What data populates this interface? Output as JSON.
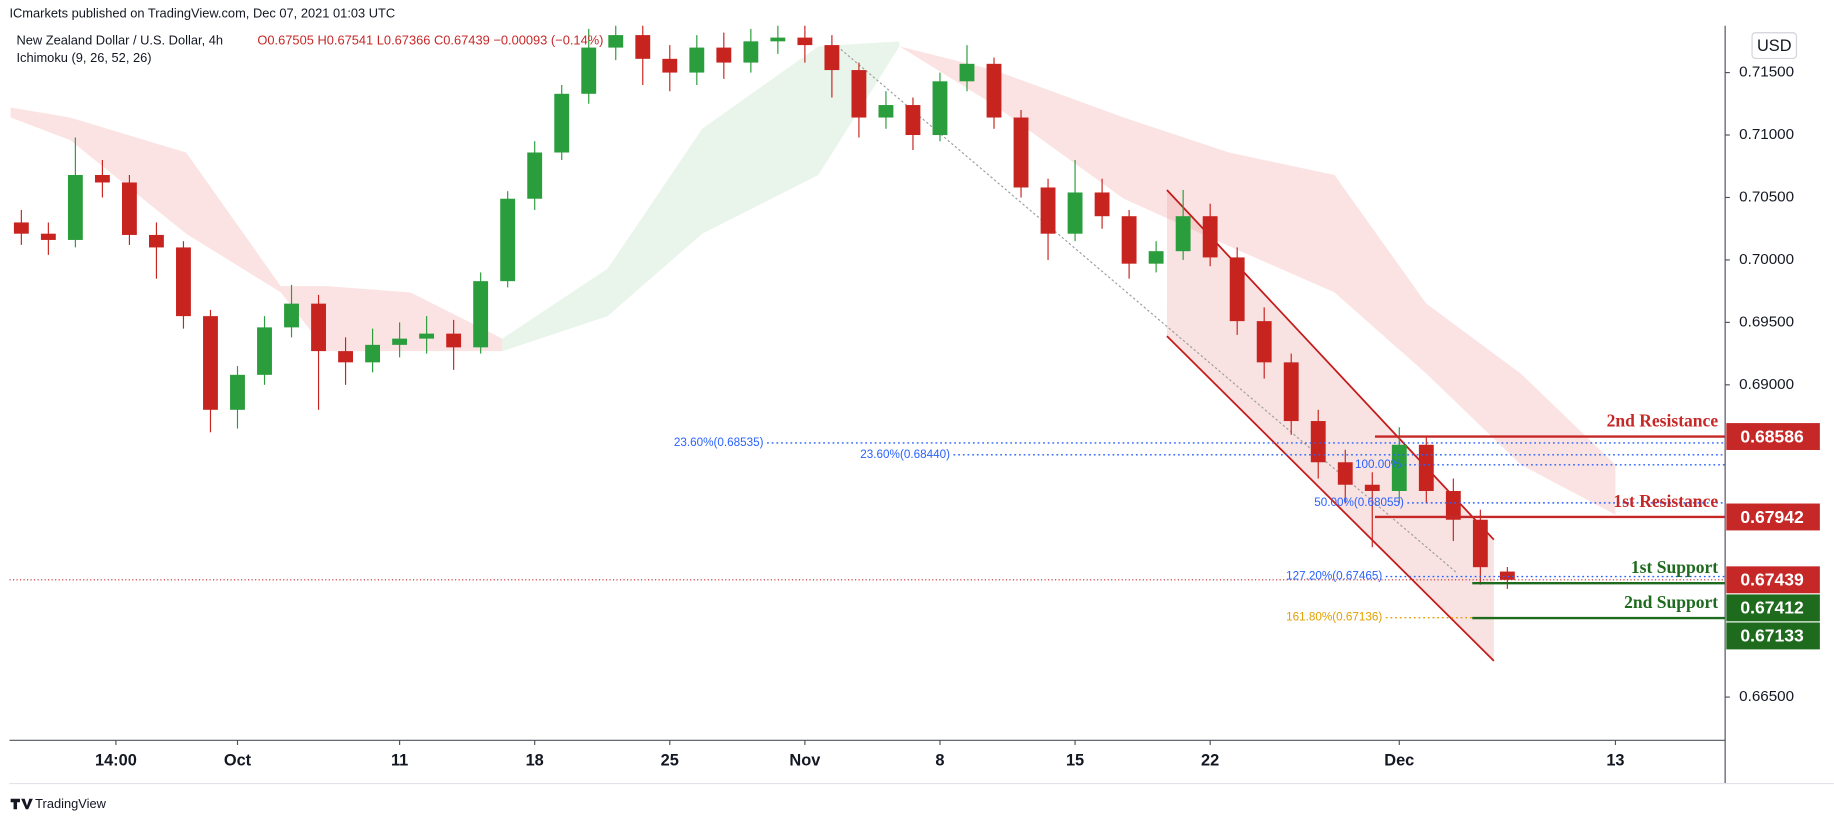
{
  "header": {
    "publisher": "ICmarkets published on TradingView.com, Dec 07, 2021 01:03 UTC",
    "symbol": "New Zealand Dollar / U.S. Dollar, 4h",
    "ohlc": "O0.67505 H0.67541 L0.67366 C0.67439 −0.00093 (−0.14%)",
    "indicator": "Ichimoku (9, 26, 52, 26)",
    "currency": "USD"
  },
  "footer": {
    "brand": "TradingView"
  },
  "chart_data": {
    "type": "candlestick",
    "xlim": [
      -8.44,
      55.06
    ],
    "ylim": [
      0.66154,
      0.71875
    ],
    "xticks": [
      {
        "value": -4.5,
        "label": "14:00"
      },
      {
        "value": 0,
        "label": "Oct"
      },
      {
        "value": 6,
        "label": "11"
      },
      {
        "value": 11,
        "label": "18"
      },
      {
        "value": 16,
        "label": "25"
      },
      {
        "value": 21,
        "label": "Nov"
      },
      {
        "value": 26,
        "label": "8"
      },
      {
        "value": 31,
        "label": "15"
      },
      {
        "value": 36,
        "label": "22"
      },
      {
        "value": 43,
        "label": "Dec"
      },
      {
        "value": 51,
        "label": "13"
      }
    ],
    "yticks": [
      {
        "value": 0.715,
        "label": "0.71500"
      },
      {
        "value": 0.71,
        "label": "0.71000"
      },
      {
        "value": 0.705,
        "label": "0.70500"
      },
      {
        "value": 0.7,
        "label": "0.70000"
      },
      {
        "value": 0.695,
        "label": "0.69500"
      },
      {
        "value": 0.69,
        "label": "0.69000"
      },
      {
        "value": 0.665,
        "label": "0.66500"
      }
    ],
    "grid": false,
    "candles": {
      "up_color": "#2a9d3c",
      "down_color": "#c7241f",
      "x": [
        -8,
        -7,
        -6,
        -5,
        -4,
        -3,
        -2,
        -1,
        0,
        1,
        2,
        3,
        4,
        5,
        6,
        7,
        8,
        9,
        10,
        11,
        12,
        13,
        14,
        15,
        16,
        17,
        18,
        19,
        20,
        21,
        22,
        23,
        24,
        25,
        26,
        27,
        28,
        29,
        30,
        31,
        32,
        33,
        34,
        35,
        36,
        37,
        38,
        39,
        40,
        41,
        42,
        43,
        44,
        45,
        46,
        47
      ],
      "open": [
        0.703,
        0.7021,
        0.7016,
        0.7068,
        0.7062,
        0.702,
        0.701,
        0.6955,
        0.688,
        0.6908,
        0.6946,
        0.6965,
        0.6927,
        0.6918,
        0.6932,
        0.6937,
        0.6941,
        0.693,
        0.6983,
        0.7049,
        0.7086,
        0.7133,
        0.717,
        0.718,
        0.7161,
        0.715,
        0.717,
        0.7158,
        0.7175,
        0.7178,
        0.7172,
        0.7152,
        0.7114,
        0.7124,
        0.71,
        0.7143,
        0.7157,
        0.7114,
        0.7058,
        0.7021,
        0.7054,
        0.7035,
        0.6997,
        0.7007,
        0.7035,
        0.7002,
        0.6951,
        0.6918,
        0.6871,
        0.6838,
        0.682,
        0.6815,
        0.6852,
        0.6815,
        0.6792,
        0.67505
      ],
      "high": [
        0.704,
        0.703,
        0.7098,
        0.708,
        0.7068,
        0.703,
        0.7015,
        0.696,
        0.6915,
        0.6955,
        0.698,
        0.6972,
        0.6938,
        0.6945,
        0.695,
        0.6955,
        0.6952,
        0.699,
        0.7055,
        0.7095,
        0.714,
        0.7185,
        0.7192,
        0.7188,
        0.7172,
        0.718,
        0.7182,
        0.7185,
        0.719,
        0.7188,
        0.718,
        0.7158,
        0.7135,
        0.713,
        0.715,
        0.7172,
        0.7162,
        0.712,
        0.7065,
        0.708,
        0.7065,
        0.704,
        0.7015,
        0.7056,
        0.7045,
        0.701,
        0.6962,
        0.6925,
        0.688,
        0.6848,
        0.683,
        0.6866,
        0.6858,
        0.6825,
        0.68,
        0.67541
      ],
      "low": [
        0.7012,
        0.7004,
        0.701,
        0.705,
        0.7012,
        0.6985,
        0.6945,
        0.6862,
        0.6865,
        0.69,
        0.6938,
        0.688,
        0.69,
        0.691,
        0.6922,
        0.6925,
        0.6912,
        0.6925,
        0.6978,
        0.704,
        0.708,
        0.7125,
        0.716,
        0.714,
        0.7135,
        0.714,
        0.7145,
        0.715,
        0.7165,
        0.7158,
        0.713,
        0.7098,
        0.7105,
        0.7088,
        0.7095,
        0.7135,
        0.7105,
        0.705,
        0.7,
        0.7015,
        0.7025,
        0.6985,
        0.699,
        0.7,
        0.6995,
        0.694,
        0.6905,
        0.686,
        0.6825,
        0.6805,
        0.677,
        0.6805,
        0.6805,
        0.6775,
        0.674,
        0.67366
      ],
      "close": [
        0.7021,
        0.7016,
        0.7068,
        0.7062,
        0.702,
        0.701,
        0.6955,
        0.688,
        0.6908,
        0.6946,
        0.6965,
        0.6927,
        0.6918,
        0.6932,
        0.6937,
        0.6941,
        0.693,
        0.6983,
        0.7049,
        0.7086,
        0.7133,
        0.717,
        0.718,
        0.7161,
        0.715,
        0.717,
        0.7158,
        0.7175,
        0.7178,
        0.7172,
        0.7152,
        0.7114,
        0.7124,
        0.71,
        0.7143,
        0.7157,
        0.7114,
        0.7058,
        0.7021,
        0.7054,
        0.7035,
        0.6997,
        0.7007,
        0.7035,
        0.7002,
        0.6951,
        0.6918,
        0.6871,
        0.6838,
        0.682,
        0.6815,
        0.6852,
        0.6815,
        0.6792,
        0.6754,
        0.67439
      ]
    },
    "cloud": [
      {
        "color": "#fbdcdc",
        "x": [
          -8.4,
          -6.2,
          -1.9,
          1.6,
          3.3,
          6.4,
          9.8
        ],
        "upper": [
          0.7122,
          0.7114,
          0.7086,
          0.6979,
          0.6979,
          0.6974,
          0.6937
        ],
        "lower": [
          0.7114,
          0.7096,
          0.7021,
          0.6974,
          0.6927,
          0.6927,
          0.6927
        ]
      },
      {
        "color": "#e3f3e5",
        "x": [
          9.8,
          13.7,
          17.2,
          21.5,
          24.5
        ],
        "upper": [
          0.6937,
          0.6993,
          0.7105,
          0.7171,
          0.7175
        ],
        "lower": [
          0.6927,
          0.6955,
          0.7021,
          0.7068,
          0.7171
        ]
      },
      {
        "color": "#fbdcdc",
        "x": [
          24.5,
          28,
          32.8,
          36.7,
          40.6,
          44,
          47.5,
          51
        ],
        "upper": [
          0.7171,
          0.7152,
          0.7114,
          0.7086,
          0.7068,
          0.6965,
          0.6909,
          0.6836
        ],
        "lower": [
          0.7171,
          0.7124,
          0.7049,
          0.7011,
          0.6974,
          0.6909,
          0.6836,
          0.6796
        ]
      }
    ],
    "channel": {
      "color": "#c41a1a",
      "x": [
        34.4,
        46.5
      ],
      "upper": [
        0.7056,
        0.6776
      ],
      "lower": [
        0.6939,
        0.6679
      ]
    },
    "trendline": {
      "color": "#9e9e9e",
      "x": [
        22.2,
        45.1
      ],
      "y": [
        0.7171,
        0.675
      ]
    },
    "fib_levels": [
      {
        "label": "23.60%(0.68535)",
        "value": 0.68535,
        "x": 19.6,
        "color": "#2962ff"
      },
      {
        "label": "23.60%(0.68440)",
        "value": 0.6844,
        "x": 26.5,
        "color": "#2962ff"
      },
      {
        "label": "100.00%",
        "value": 0.6836,
        "x": 43.2,
        "color": "#2962ff"
      },
      {
        "label": "50.00%(0.68055)",
        "value": 0.68055,
        "x": 43.3,
        "color": "#2962ff"
      },
      {
        "label": "127.20%(0.67465)",
        "value": 0.67465,
        "x": 42.5,
        "color": "#2962ff"
      },
      {
        "label": "161.80%(0.67136)",
        "value": 0.67136,
        "x": 42.5,
        "color": "#e0a000",
        "x_end": 45.7
      }
    ],
    "levels": [
      {
        "label": "2nd Resistance",
        "value": 0.68586,
        "x": 42.1,
        "color": "#c62828"
      },
      {
        "label": "1st Resistance",
        "value": 0.67942,
        "x": 42.1,
        "color": "#c62828"
      },
      {
        "label": "1st Support",
        "value": 0.67412,
        "x": 45.7,
        "color": "#1e6b1e"
      },
      {
        "label": "2nd Support",
        "value": 0.67133,
        "x": 45.7,
        "color": "#1e6b1e"
      }
    ],
    "last_price": {
      "value": 0.67439,
      "color": "#c62828"
    }
  }
}
